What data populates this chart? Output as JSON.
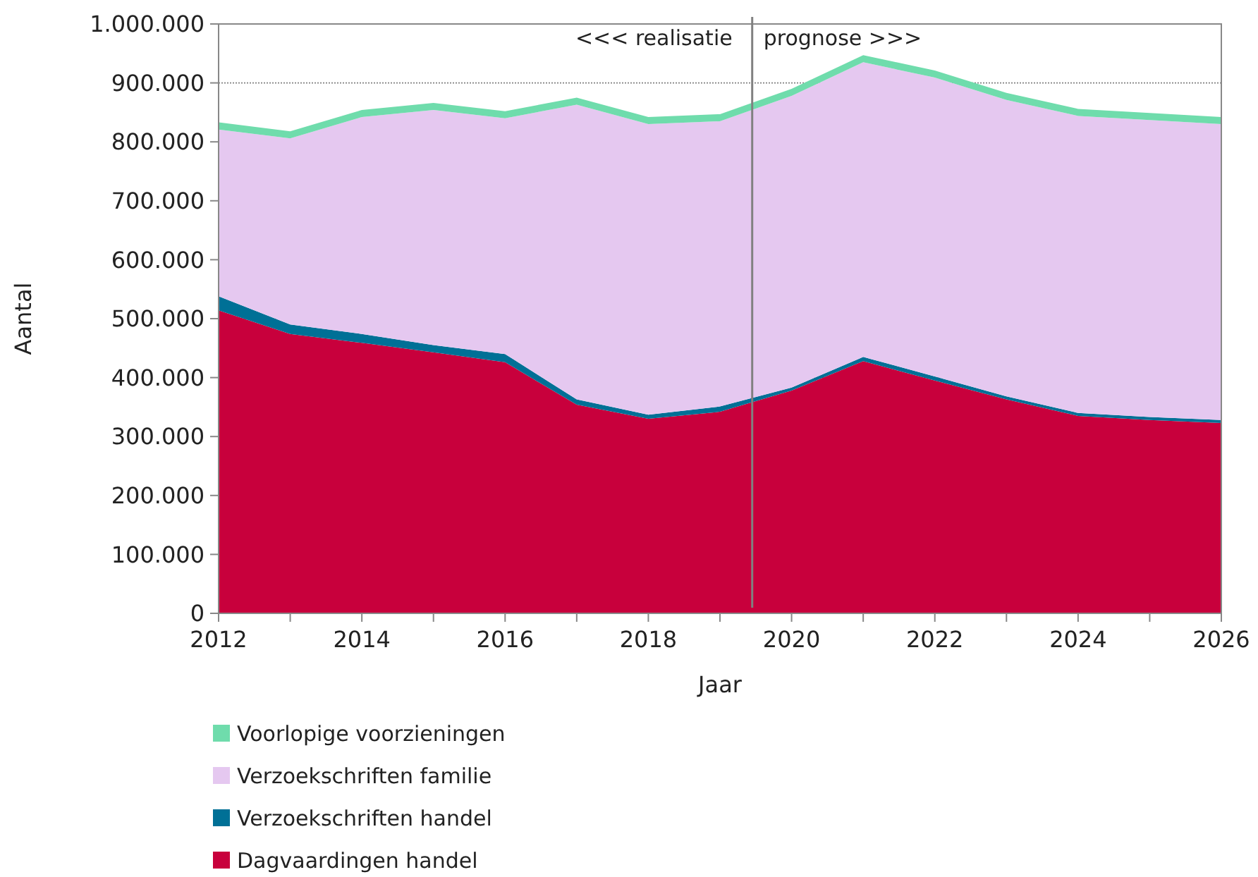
{
  "chart_data": {
    "type": "area",
    "stacked": true,
    "xlabel": "Jaar",
    "ylabel": "Aantal",
    "x": [
      2012,
      2013,
      2014,
      2015,
      2016,
      2017,
      2018,
      2019,
      2020,
      2021,
      2022,
      2023,
      2024,
      2025,
      2026
    ],
    "series": [
      {
        "name": "Dagvaardingen handel",
        "color": "#c8003c",
        "values": [
          514000,
          474000,
          459000,
          443000,
          426000,
          354000,
          330000,
          342000,
          378000,
          428000,
          395000,
          363000,
          335000,
          328000,
          323000
        ]
      },
      {
        "name": "Verzoekschriften handel",
        "color": "#007096",
        "values": [
          24000,
          16000,
          15000,
          12000,
          14000,
          9000,
          7000,
          9000,
          5000,
          7000,
          7000,
          5000,
          5000,
          5000,
          5000
        ]
      },
      {
        "name": "Verzoekschriften familie",
        "color": "#e5c8f0",
        "values": [
          283000,
          316000,
          368000,
          399000,
          400000,
          500000,
          493000,
          484000,
          495000,
          500000,
          507000,
          503000,
          504000,
          504000,
          502000
        ]
      },
      {
        "name": "Voorlopige voorzieningen",
        "color": "#6fdcac",
        "values": [
          12000,
          12000,
          12000,
          12000,
          12000,
          12000,
          12000,
          12000,
          12000,
          12000,
          12000,
          12000,
          12000,
          12000,
          12000
        ]
      }
    ],
    "xlim": [
      2012,
      2026
    ],
    "xticks": [
      2012,
      {
        "value": 2013,
        "label": null
      },
      2014,
      {
        "value": 2015,
        "label": null
      },
      2016,
      {
        "value": 2017,
        "label": null
      },
      2018,
      {
        "value": 2019,
        "label": null
      },
      2020,
      {
        "value": 2021,
        "label": null
      },
      2022,
      {
        "value": 2023,
        "label": null
      },
      2024,
      {
        "value": 2025,
        "label": null
      },
      2026
    ],
    "ylim": [
      0,
      1000000
    ],
    "yticks": [
      0,
      {
        "value": 100000,
        "label": "100.000"
      },
      {
        "value": 200000,
        "label": "200.000"
      },
      {
        "value": 300000,
        "label": "300.000"
      },
      {
        "value": 400000,
        "label": "400.000"
      },
      {
        "value": 500000,
        "label": "500.000"
      },
      {
        "value": 600000,
        "label": "600.000"
      },
      {
        "value": 700000,
        "label": "700.000"
      },
      {
        "value": 800000,
        "label": "800.000"
      },
      {
        "value": 900000,
        "label": "900.000"
      },
      {
        "value": 1000000,
        "label": "1.000.000"
      }
    ],
    "grid": "y",
    "line_style": "dotted",
    "ref_lines": [
      {
        "axis": "x",
        "value": 2019.45,
        "label": null,
        "color": "#808080"
      }
    ],
    "annotations": [
      "<<< realisatie",
      "prognose >>>"
    ],
    "legend": "bottom"
  }
}
